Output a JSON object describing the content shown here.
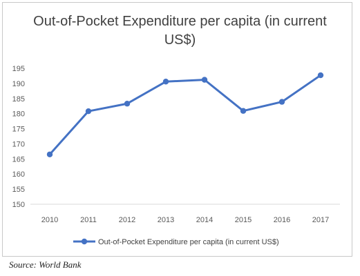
{
  "chart_data": {
    "type": "line",
    "title_line1": "Out-of-Pocket Expenditure per capita (in current",
    "title_line2": "US$)",
    "xlabel": "",
    "ylabel": "",
    "x": [
      "2010",
      "2011",
      "2012",
      "2013",
      "2014",
      "2015",
      "2016",
      "2017"
    ],
    "series": [
      {
        "name": "Out-of-Pocket Expenditure per capita (in current US$)",
        "values": [
          166.5,
          180.8,
          183.3,
          190.6,
          191.2,
          180.9,
          183.9,
          192.7
        ],
        "color": "#4472c4"
      }
    ],
    "ylim": [
      150,
      195
    ],
    "yticks": [
      "150",
      "155",
      "160",
      "165",
      "170",
      "175",
      "180",
      "185",
      "190",
      "195"
    ],
    "grid": false,
    "legend_position": "bottom"
  },
  "source": "Source: World Bank"
}
